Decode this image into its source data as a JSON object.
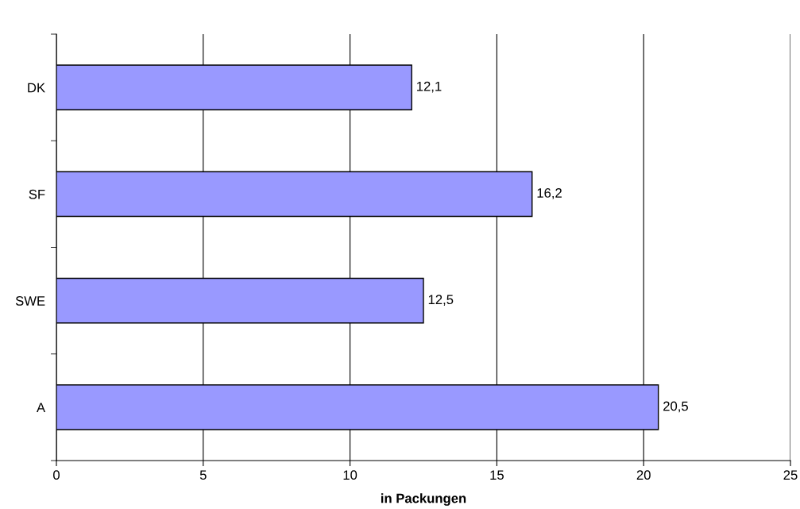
{
  "chart_data": {
    "type": "bar",
    "orientation": "horizontal",
    "xlabel": "in Packungen",
    "categories": [
      "DK",
      "SF",
      "SWE",
      "A"
    ],
    "values": [
      12.1,
      16.2,
      12.5,
      20.5
    ],
    "value_labels": [
      "12,1",
      "16,2",
      "12,5",
      "20,5"
    ],
    "color": "#9999ff",
    "xlim": [
      0,
      25
    ],
    "xticks": [
      0,
      5,
      10,
      15,
      20,
      25
    ],
    "grid": "x"
  }
}
